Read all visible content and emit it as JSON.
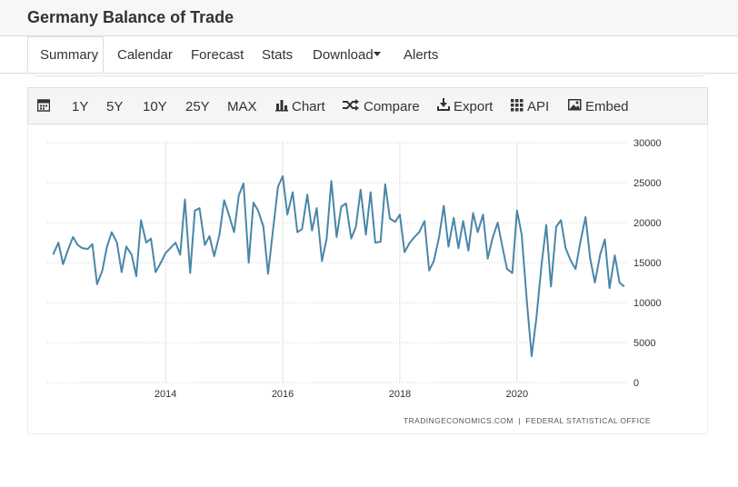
{
  "header": {
    "title": "Germany Balance of Trade"
  },
  "tabs": [
    "Summary",
    "Calendar",
    "Forecast",
    "Stats",
    "Download",
    "Alerts"
  ],
  "toolbar": [
    "1Y",
    "5Y",
    "10Y",
    "25Y",
    "MAX",
    "Chart",
    "Compare",
    "Export",
    "API",
    "Embed"
  ],
  "chart_data": {
    "type": "line",
    "x": [
      2012.08,
      2012.17,
      2012.25,
      2012.33,
      2012.42,
      2012.5,
      2012.58,
      2012.67,
      2012.75,
      2012.83,
      2012.92,
      2013.0,
      2013.08,
      2013.17,
      2013.25,
      2013.33,
      2013.42,
      2013.5,
      2013.58,
      2013.67,
      2013.75,
      2013.83,
      2013.92,
      2014.0,
      2014.08,
      2014.17,
      2014.25,
      2014.33,
      2014.42,
      2014.5,
      2014.58,
      2014.67,
      2014.75,
      2014.83,
      2014.92,
      2015.0,
      2015.08,
      2015.17,
      2015.25,
      2015.33,
      2015.42,
      2015.5,
      2015.58,
      2015.67,
      2015.75,
      2015.83,
      2015.92,
      2016.0,
      2016.08,
      2016.17,
      2016.25,
      2016.33,
      2016.42,
      2016.5,
      2016.58,
      2016.67,
      2016.75,
      2016.83,
      2016.92,
      2017.0,
      2017.08,
      2017.17,
      2017.25,
      2017.33,
      2017.42,
      2017.5,
      2017.58,
      2017.67,
      2017.75,
      2017.83,
      2017.92,
      2018.0,
      2018.08,
      2018.17,
      2018.25,
      2018.33,
      2018.42,
      2018.5,
      2018.58,
      2018.67,
      2018.75,
      2018.83,
      2018.92,
      2019.0,
      2019.08,
      2019.17,
      2019.25,
      2019.33,
      2019.42,
      2019.5,
      2019.58,
      2019.67,
      2019.75,
      2019.83,
      2019.92,
      2020.0,
      2020.08,
      2020.17,
      2020.25,
      2020.33,
      2020.42,
      2020.5,
      2020.58,
      2020.67,
      2020.75,
      2020.83,
      2020.92,
      2021.0,
      2021.08,
      2021.17,
      2021.25,
      2021.33,
      2021.42,
      2021.5,
      2021.58,
      2021.67,
      2021.75,
      2021.83
    ],
    "values": [
      16000,
      17500,
      14800,
      16500,
      18200,
      17200,
      16800,
      16700,
      17300,
      12300,
      14000,
      17000,
      18800,
      17500,
      13800,
      17000,
      16000,
      13300,
      20300,
      17500,
      18000,
      13800,
      15000,
      16200,
      16800,
      17500,
      16000,
      22900,
      13700,
      21500,
      21800,
      17200,
      18300,
      15800,
      18500,
      22800,
      21000,
      18800,
      23400,
      24900,
      15000,
      22500,
      21500,
      19500,
      13600,
      18800,
      24500,
      25800,
      21000,
      23800,
      18800,
      19200,
      23500,
      19000,
      21800,
      15200,
      18000,
      25200,
      18200,
      22000,
      22400,
      18000,
      19500,
      24100,
      18500,
      23800,
      17500,
      17600,
      24800,
      20500,
      20100,
      21000,
      16300,
      17500,
      18200,
      18800,
      20200,
      14000,
      15200,
      18200,
      22100,
      17000,
      20600,
      16800,
      20200,
      16500,
      21200,
      18800,
      21000,
      15500,
      18000,
      20000,
      17000,
      14200,
      13700,
      21500,
      18500,
      10000,
      3300,
      8000,
      14800,
      19700,
      12000,
      19500,
      20300,
      16800,
      15200,
      14200,
      17500,
      20700,
      15500,
      12500,
      16000,
      17900,
      11800,
      15900,
      12500,
      12000
    ],
    "color": "#4a86a8",
    "xlim": [
      2011.98,
      2021.88
    ],
    "xticks": [
      2014,
      2016,
      2018,
      2020
    ],
    "ylim": [
      0,
      30000
    ],
    "yticks": [
      0,
      5000,
      10000,
      15000,
      20000,
      25000,
      30000
    ],
    "grid": true,
    "source": "TRADINGECONOMICS.COM  |  FEDERAL STATISTICAL OFFICE"
  }
}
